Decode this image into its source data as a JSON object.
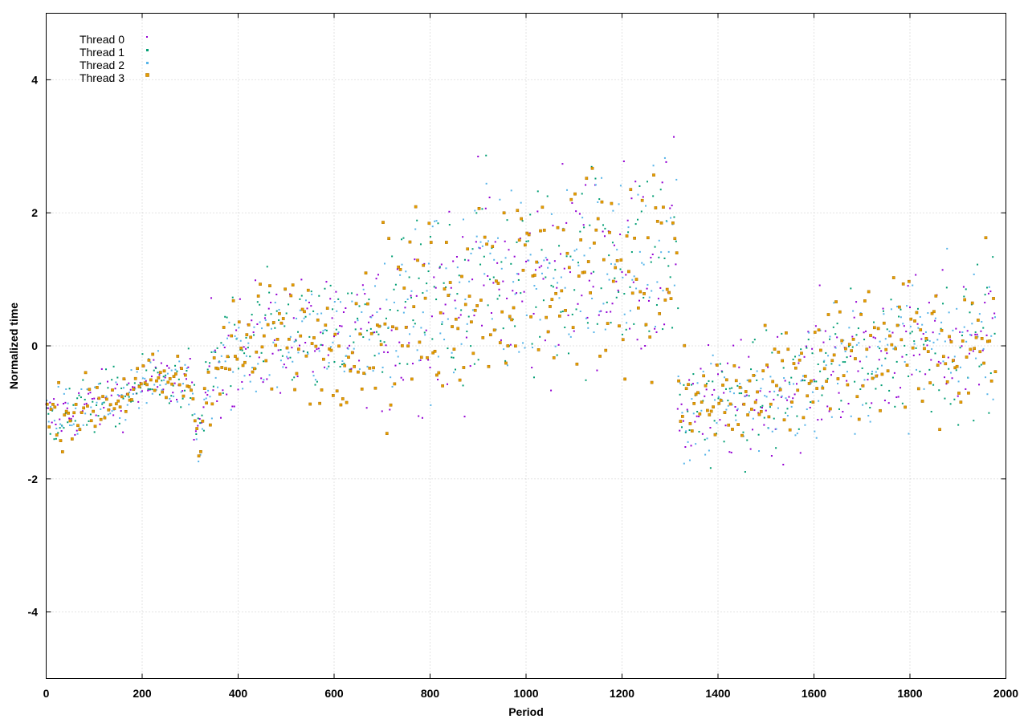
{
  "chart_data": {
    "type": "scatter",
    "title": "",
    "xlabel": "Period",
    "ylabel": "Normalized time",
    "xlim": [
      0,
      2000
    ],
    "ylim": [
      -5,
      5
    ],
    "xticks": [
      0,
      200,
      400,
      600,
      800,
      1000,
      1200,
      1400,
      1600,
      1800,
      2000
    ],
    "yticks": [
      -4,
      -2,
      0,
      2,
      4
    ],
    "grid": true,
    "legend_position": "top-left",
    "point_count_per_series": 495,
    "period_step": 4,
    "series": [
      {
        "name": "Thread 0",
        "color": "#9400d3",
        "marker": "dot",
        "trend": [
          [
            0,
            -1.1
          ],
          [
            100,
            -0.9
          ],
          [
            200,
            -0.6
          ],
          [
            300,
            -0.5
          ],
          [
            320,
            -1.6
          ],
          [
            340,
            -0.2
          ],
          [
            400,
            -0.1
          ],
          [
            500,
            0.2
          ],
          [
            600,
            0.0
          ],
          [
            700,
            0.3
          ],
          [
            800,
            0.6
          ],
          [
            900,
            1.0
          ],
          [
            1000,
            0.9
          ],
          [
            1100,
            1.2
          ],
          [
            1200,
            1.3
          ],
          [
            1310,
            1.3
          ],
          [
            1320,
            -0.9
          ],
          [
            1400,
            -0.9
          ],
          [
            1500,
            -0.8
          ],
          [
            1600,
            -0.4
          ],
          [
            1700,
            -0.2
          ],
          [
            1800,
            0.0
          ],
          [
            1900,
            0.0
          ],
          [
            1980,
            0.3
          ]
        ]
      },
      {
        "name": "Thread 1",
        "color": "#009e73",
        "marker": "dot",
        "trend": [
          [
            0,
            -1.1
          ],
          [
            100,
            -0.9
          ],
          [
            200,
            -0.6
          ],
          [
            300,
            -0.5
          ],
          [
            320,
            -1.6
          ],
          [
            340,
            -0.2
          ],
          [
            400,
            -0.1
          ],
          [
            500,
            0.2
          ],
          [
            600,
            0.0
          ],
          [
            700,
            0.3
          ],
          [
            800,
            0.6
          ],
          [
            900,
            1.0
          ],
          [
            1000,
            0.9
          ],
          [
            1100,
            1.2
          ],
          [
            1200,
            1.3
          ],
          [
            1310,
            1.3
          ],
          [
            1320,
            -0.9
          ],
          [
            1400,
            -0.9
          ],
          [
            1500,
            -0.8
          ],
          [
            1600,
            -0.4
          ],
          [
            1700,
            -0.2
          ],
          [
            1800,
            0.0
          ],
          [
            1900,
            0.0
          ],
          [
            1980,
            0.3
          ]
        ]
      },
      {
        "name": "Thread 2",
        "color": "#56b4e9",
        "marker": "dot",
        "trend": [
          [
            0,
            -1.1
          ],
          [
            100,
            -0.9
          ],
          [
            200,
            -0.6
          ],
          [
            300,
            -0.5
          ],
          [
            320,
            -1.6
          ],
          [
            340,
            -0.2
          ],
          [
            400,
            -0.1
          ],
          [
            500,
            0.2
          ],
          [
            600,
            0.0
          ],
          [
            700,
            0.3
          ],
          [
            800,
            0.6
          ],
          [
            900,
            1.0
          ],
          [
            1000,
            0.9
          ],
          [
            1100,
            1.2
          ],
          [
            1200,
            1.3
          ],
          [
            1310,
            1.3
          ],
          [
            1320,
            -0.9
          ],
          [
            1400,
            -0.9
          ],
          [
            1500,
            -0.8
          ],
          [
            1600,
            -0.4
          ],
          [
            1700,
            -0.2
          ],
          [
            1800,
            0.0
          ],
          [
            1900,
            0.0
          ],
          [
            1980,
            0.3
          ]
        ]
      },
      {
        "name": "Thread 3",
        "color": "#e69f00",
        "marker": "square",
        "trend": [
          [
            0,
            -1.1
          ],
          [
            100,
            -0.9
          ],
          [
            200,
            -0.6
          ],
          [
            300,
            -0.5
          ],
          [
            320,
            -1.6
          ],
          [
            340,
            -0.2
          ],
          [
            400,
            -0.1
          ],
          [
            500,
            0.2
          ],
          [
            600,
            0.0
          ],
          [
            700,
            0.3
          ],
          [
            800,
            0.6
          ],
          [
            900,
            1.0
          ],
          [
            1000,
            0.9
          ],
          [
            1100,
            1.2
          ],
          [
            1200,
            1.3
          ],
          [
            1310,
            1.3
          ],
          [
            1320,
            -0.9
          ],
          [
            1400,
            -0.9
          ],
          [
            1500,
            -0.8
          ],
          [
            1600,
            -0.4
          ],
          [
            1700,
            -0.2
          ],
          [
            1800,
            0.0
          ],
          [
            1900,
            0.0
          ],
          [
            1980,
            0.3
          ]
        ]
      }
    ]
  }
}
